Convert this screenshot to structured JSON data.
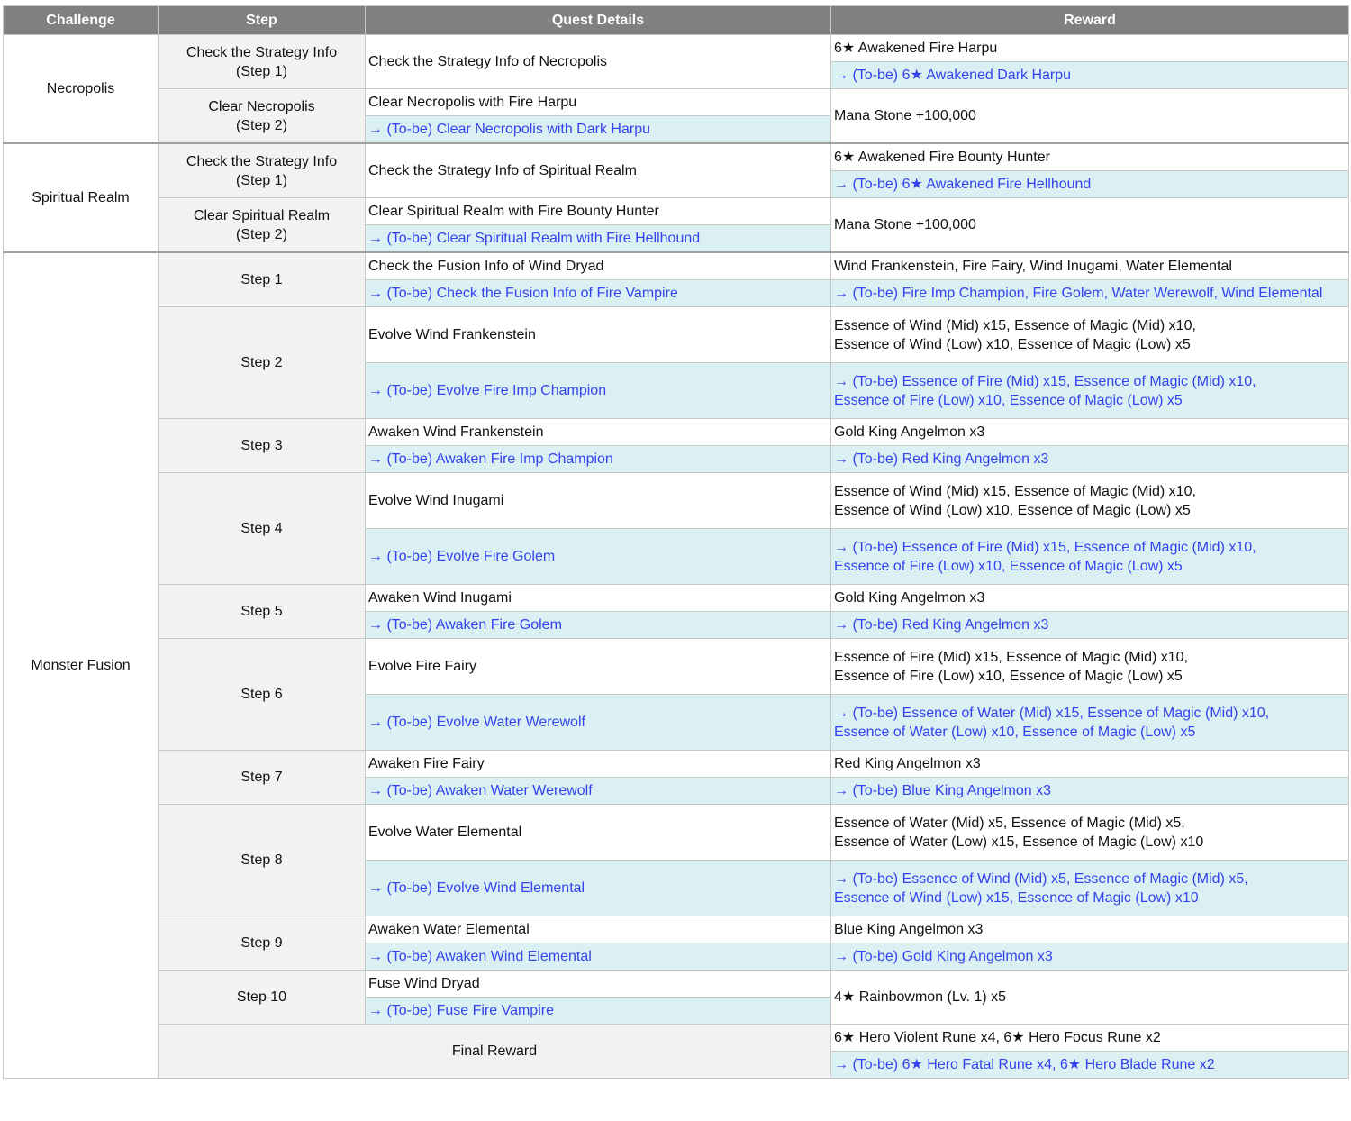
{
  "headers": [
    "Challenge",
    "Step",
    "Quest Details",
    "Reward"
  ],
  "colors": {
    "header_bg": "#808080",
    "step_bg": "#f2f2f2",
    "tobe_bg": "#dbf0f2",
    "tobe_text": "#3344ee"
  },
  "sections": [
    {
      "challenge": "Necropolis",
      "steps": [
        {
          "step": "Check the Strategy Info\n(Step 1)",
          "quest": "Check the Strategy Info of Necropolis",
          "quest_tobe": null,
          "reward": "6★ Awakened Fire Harpu",
          "reward_tobe": "→ (To-be) 6★ Awakened Dark Harpu"
        },
        {
          "step": "Clear Necropolis\n(Step 2)",
          "quest": "Clear Necropolis with Fire Harpu",
          "quest_tobe": "→ (To-be) Clear Necropolis with Dark Harpu",
          "reward": "Mana Stone +100,000",
          "reward_tobe": null
        }
      ]
    },
    {
      "challenge": "Spiritual Realm",
      "steps": [
        {
          "step": "Check the Strategy Info\n(Step 1)",
          "quest": "Check the Strategy Info of Spiritual Realm",
          "quest_tobe": null,
          "reward": "6★ Awakened Fire Bounty Hunter",
          "reward_tobe": "→ (To-be) 6★ Awakened Fire Hellhound"
        },
        {
          "step": "Clear Spiritual Realm\n(Step 2)",
          "quest": "Clear Spiritual Realm with Fire Bounty Hunter",
          "quest_tobe": "→ (To-be) Clear Spiritual Realm with Fire Hellhound",
          "reward": "Mana Stone +100,000",
          "reward_tobe": null
        }
      ]
    },
    {
      "challenge": "Monster Fusion",
      "steps": [
        {
          "step": "Step 1",
          "quest": "Check the Fusion Info of Wind Dryad",
          "quest_tobe": "→ (To-be) Check the Fusion Info of Fire Vampire",
          "reward": "Wind Frankenstein, Fire Fairy, Wind Inugami, Water Elemental",
          "reward_tobe": "→ (To-be) Fire Imp Champion, Fire Golem, Water Werewolf, Wind Elemental"
        },
        {
          "step": "Step 2",
          "quest": "Evolve Wind Frankenstein",
          "quest_tobe": "→ (To-be) Evolve Fire Imp Champion",
          "reward": "Essence of Wind (Mid) x15, Essence of Magic (Mid) x10,\nEssence of Wind (Low) x10, Essence of Magic (Low) x5",
          "reward_tobe": "→ (To-be) Essence of Fire (Mid) x15, Essence of Magic (Mid) x10,\nEssence of Fire (Low) x10, Essence of Magic (Low) x5"
        },
        {
          "step": "Step 3",
          "quest": "Awaken Wind Frankenstein",
          "quest_tobe": "→ (To-be) Awaken Fire Imp Champion",
          "reward": "Gold King Angelmon x3",
          "reward_tobe": "→ (To-be) Red King Angelmon x3"
        },
        {
          "step": "Step 4",
          "quest": "Evolve Wind Inugami",
          "quest_tobe": "→ (To-be) Evolve Fire Golem",
          "reward": "Essence of Wind (Mid) x15, Essence of Magic (Mid) x10,\nEssence of Wind (Low) x10, Essence of Magic (Low) x5",
          "reward_tobe": "→ (To-be) Essence of Fire (Mid) x15, Essence of Magic (Mid) x10,\nEssence of Fire (Low) x10, Essence of Magic (Low) x5"
        },
        {
          "step": "Step 5",
          "quest": "Awaken Wind Inugami",
          "quest_tobe": "→ (To-be) Awaken Fire Golem",
          "reward": "Gold King Angelmon x3",
          "reward_tobe": "→ (To-be) Red King Angelmon x3"
        },
        {
          "step": "Step 6",
          "quest": "Evolve Fire Fairy",
          "quest_tobe": "→ (To-be) Evolve Water Werewolf",
          "reward": "Essence of Fire (Mid) x15, Essence of Magic (Mid) x10,\nEssence of Fire (Low) x10, Essence of Magic (Low) x5",
          "reward_tobe": "→ (To-be) Essence of Water (Mid) x15, Essence of Magic (Mid) x10,\nEssence of Water (Low) x10, Essence of Magic (Low) x5"
        },
        {
          "step": "Step 7",
          "quest": "Awaken Fire Fairy",
          "quest_tobe": "→ (To-be) Awaken Water Werewolf",
          "reward": "Red King Angelmon x3",
          "reward_tobe": "→ (To-be) Blue King Angelmon x3"
        },
        {
          "step": "Step 8",
          "quest": "Evolve Water Elemental",
          "quest_tobe": "→ (To-be) Evolve Wind Elemental",
          "reward": "Essence of Water (Mid) x5, Essence of Magic (Mid) x5,\nEssence of Water (Low) x15, Essence of Magic (Low) x10",
          "reward_tobe": "→ (To-be) Essence of Wind (Mid) x5, Essence of Magic (Mid) x5,\nEssence of Wind (Low) x15, Essence of Magic (Low) x10"
        },
        {
          "step": "Step 9",
          "quest": "Awaken Water Elemental",
          "quest_tobe": "→ (To-be) Awaken Wind Elemental",
          "reward": "Blue King Angelmon x3",
          "reward_tobe": "→ (To-be) Gold King Angelmon x3"
        },
        {
          "step": "Step 10",
          "quest": "Fuse Wind Dryad",
          "quest_tobe": "→ (To-be) Fuse Fire Vampire",
          "reward": "4★ Rainbowmon (Lv. 1) x5",
          "reward_tobe": null
        }
      ],
      "final": {
        "label": "Final Reward",
        "reward": "6★ Hero Violent Rune x4, 6★ Hero Focus Rune x2",
        "reward_tobe": "→ (To-be) 6★ Hero Fatal Rune x4, 6★ Hero Blade Rune x2"
      }
    }
  ]
}
